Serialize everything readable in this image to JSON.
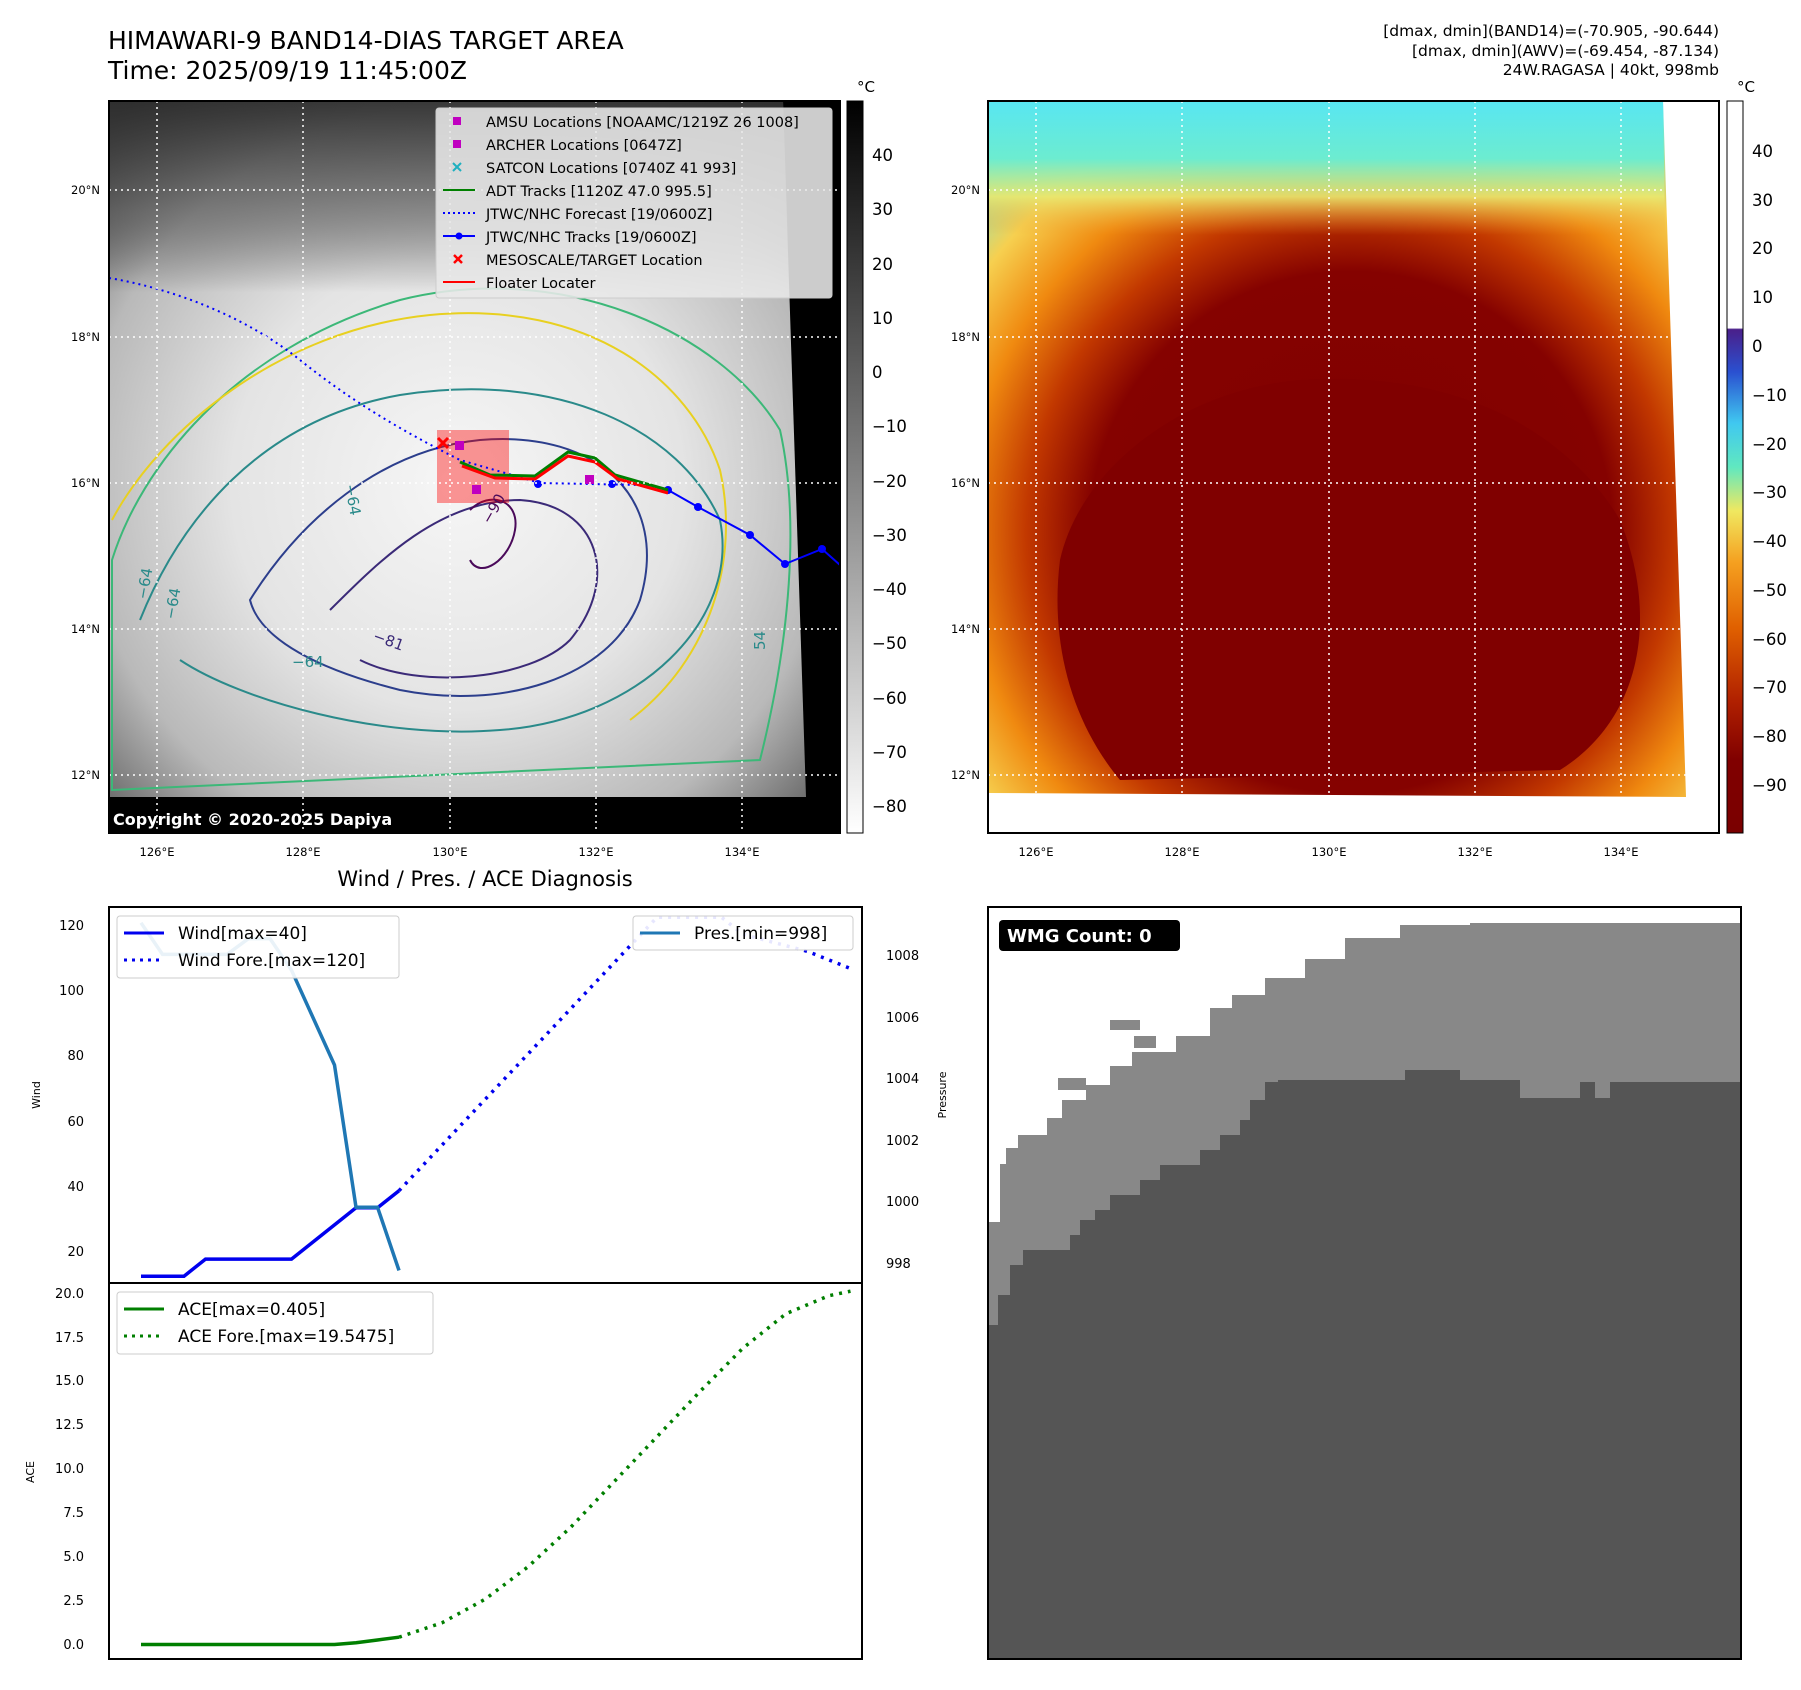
{
  "header": {
    "title_line1": "HIMAWARI-9 BAND14-DIAS TARGET AREA",
    "title_line2": "Time: 2025/09/19 11:45:00Z",
    "info_line1": "[dmax, dmin](BAND14)=(-70.905, -90.644)",
    "info_line2": "[dmax, dmin](AWV)=(-69.454, -87.134)",
    "info_line3": "24W.RAGASA | 40kt, 998mb"
  },
  "map_axes": {
    "lat_ticks": [
      "20°N",
      "18°N",
      "16°N",
      "14°N",
      "12°N"
    ],
    "lon_ticks": [
      "126°E",
      "128°E",
      "130°E",
      "132°E",
      "134°E"
    ]
  },
  "ir_panel": {
    "copyright": "Copyright © 2020-2025 Dapiya",
    "colorbar_unit": "°C",
    "colorbar_ticks": [
      "40",
      "30",
      "20",
      "10",
      "0",
      "−10",
      "−20",
      "−30",
      "−40",
      "−50",
      "−60",
      "−70",
      "−80"
    ],
    "contour_labels": [
      "−64",
      "−64",
      "−64",
      "−81",
      "−64",
      "−81",
      "−90",
      "54"
    ],
    "legend": [
      {
        "label": "AMSU Locations [NOAAMC/1219Z 26 1008]",
        "color": "#c000c0",
        "marker": "square"
      },
      {
        "label": "ARCHER Locations [0647Z]",
        "color": "#c000c0",
        "marker": "square"
      },
      {
        "label": "SATCON Locations [0740Z 41 993]",
        "color": "#20b0c0",
        "marker": "x"
      },
      {
        "label": "ADT Tracks [1120Z 47.0 995.5]",
        "color": "#008000",
        "marker": "line"
      },
      {
        "label": "JTWC/NHC Forecast [19/0600Z]",
        "color": "#0000ff",
        "marker": "dotted"
      },
      {
        "label": "JTWC/NHC Tracks [19/0600Z]",
        "color": "#0000ff",
        "marker": "line-dot"
      },
      {
        "label": "MESOSCALE/TARGET Location",
        "color": "#ff0000",
        "marker": "x"
      },
      {
        "label": "Floater Locater",
        "color": "#ff0000",
        "marker": "line"
      }
    ]
  },
  "awv_panel": {
    "colorbar_unit": "°C",
    "colorbar_ticks": [
      "40",
      "30",
      "20",
      "10",
      "0",
      "−10",
      "−20",
      "−30",
      "−40",
      "−50",
      "−60",
      "−70",
      "−80",
      "−90"
    ]
  },
  "diag_panel": {
    "title": "Wind / Pres. / ACE Diagnosis",
    "wind_ylabel": "Wind",
    "pres_ylabel": "Pressure",
    "ace_ylabel": "ACE",
    "wind_ticks": [
      "120",
      "100",
      "80",
      "60",
      "40",
      "20"
    ],
    "pres_ticks": [
      "1008",
      "1006",
      "1004",
      "1002",
      "1000",
      "998"
    ],
    "ace_ticks": [
      "20.0",
      "17.5",
      "15.0",
      "12.5",
      "10.0",
      "7.5",
      "5.0",
      "2.5",
      "0.0"
    ],
    "legend_wind": "Wind[max=40]",
    "legend_wind_fore": "Wind Fore.[max=120]",
    "legend_pres": "Pres.[min=998]",
    "legend_ace": "ACE[max=0.405]",
    "legend_ace_fore": "ACE Fore.[max=19.5475]"
  },
  "wmg_panel": {
    "badge": "WMG Count: 0"
  },
  "colors": {
    "wind": "#0000ee",
    "pressure": "#1f77b4",
    "ace": "#007f00",
    "jtwc": "#0000ff",
    "adt": "#008000",
    "floater": "#ff0000",
    "marker_magenta": "#c000c0"
  },
  "chart_data": [
    {
      "type": "line",
      "title": "Wind / Pres. / ACE Diagnosis",
      "ylabel": "Wind",
      "y2label": "Pressure",
      "ylim": [
        13,
        123
      ],
      "y2lim": [
        997.6,
        1009.5
      ],
      "series": [
        {
          "name": "Wind[max=40]",
          "axis": "left",
          "style": "solid",
          "x": [
            0,
            2,
            3,
            4,
            5,
            6,
            7,
            8,
            9,
            10,
            11,
            12
          ],
          "values": [
            15,
            15,
            20,
            20,
            20,
            20,
            20,
            25,
            30,
            35,
            35,
            40
          ]
        },
        {
          "name": "Wind Fore.[max=120]",
          "axis": "left",
          "style": "dotted",
          "x": [
            12,
            15,
            18,
            21,
            24,
            27,
            28,
            31,
            33
          ],
          "values": [
            40,
            60,
            80,
            100,
            120,
            120,
            115,
            110,
            105
          ]
        },
        {
          "name": "Pres.[min=998]",
          "axis": "right",
          "style": "solid",
          "x": [
            0,
            1,
            3,
            4,
            5,
            6,
            7,
            9,
            10,
            11,
            12
          ],
          "values": [
            1009,
            1008,
            1008,
            1008,
            1008.5,
            1008.5,
            1007.5,
            1004.5,
            1000,
            1000,
            998
          ]
        }
      ]
    },
    {
      "type": "line",
      "ylabel": "ACE",
      "ylim": [
        -0.8,
        20.0
      ],
      "series": [
        {
          "name": "ACE[max=0.405]",
          "style": "solid",
          "x": [
            0,
            9,
            10,
            11,
            12
          ],
          "values": [
            0,
            0,
            0.1,
            0.25,
            0.405
          ]
        },
        {
          "name": "ACE Fore.[max=19.5475]",
          "style": "dotted",
          "x": [
            12,
            14,
            16,
            18,
            20,
            22,
            24,
            26,
            28,
            30,
            32,
            33
          ],
          "values": [
            0.405,
            1.2,
            2.5,
            4.3,
            6.5,
            9.0,
            11.5,
            14.0,
            16.4,
            18.3,
            19.3,
            19.5475
          ]
        }
      ]
    }
  ]
}
